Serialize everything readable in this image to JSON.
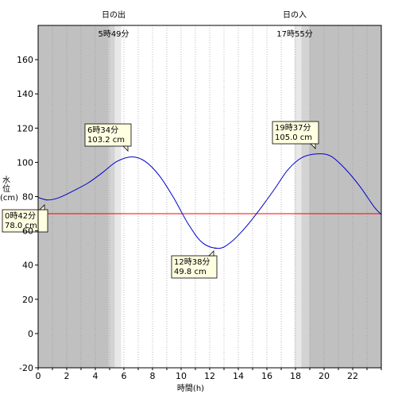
{
  "sunrise": {
    "label": "日の出",
    "time": "5時49分",
    "hour": 5.8167
  },
  "sunset": {
    "label": "日の入",
    "time": "17時55分",
    "hour": 17.9167
  },
  "colors": {
    "night": "#c0c0c0",
    "twilight_dark": "#d3d3d3",
    "twilight_light": "#e8e8e8",
    "day": "#ffffff",
    "curve": "#0000cc",
    "reference": "#ff0000",
    "annotation_fill": "#ffffe1"
  },
  "chart_data": {
    "type": "line",
    "xlabel": "時間(h)",
    "ylabel": "水位(cm)",
    "xlim": [
      0,
      24
    ],
    "ylim": [
      -20,
      180
    ],
    "x_ticks": [
      0,
      2,
      4,
      6,
      8,
      10,
      12,
      14,
      16,
      18,
      20,
      22
    ],
    "y_ticks": [
      -20,
      0,
      20,
      40,
      60,
      80,
      100,
      120,
      140,
      160
    ],
    "grid": "vertical dotted every hour",
    "reference_line": 70,
    "series": [
      {
        "x": [
          0,
          0.7,
          1.5,
          2.5,
          3.5,
          4.5,
          5.5,
          6.57,
          7.5,
          8.5,
          9.5,
          10.5,
          11.5,
          12.63,
          13.5,
          14.5,
          15.5,
          16.5,
          17.5,
          18.5,
          19.62,
          20.5,
          21.5,
          22.5,
          23.5,
          24
        ],
        "y": [
          79.5,
          78.0,
          79.5,
          83.5,
          88.0,
          94.0,
          100.5,
          103.2,
          100.5,
          92.0,
          79.0,
          64.0,
          53.0,
          49.8,
          53.5,
          62.0,
          72.5,
          84.0,
          96.0,
          103.0,
          105.0,
          103.5,
          96.0,
          86.0,
          74.0,
          69.5
        ]
      }
    ],
    "annotations": [
      {
        "time": "0時42分",
        "value": "78.0 cm",
        "x": 0.7,
        "y": 78.0
      },
      {
        "time": "6時34分",
        "value": "103.2 cm",
        "x": 6.57,
        "y": 103.2
      },
      {
        "time": "12時38分",
        "value": "49.8 cm",
        "x": 12.63,
        "y": 49.8
      },
      {
        "time": "19時37分",
        "value": "105.0 cm",
        "x": 19.62,
        "y": 105.0
      }
    ]
  }
}
